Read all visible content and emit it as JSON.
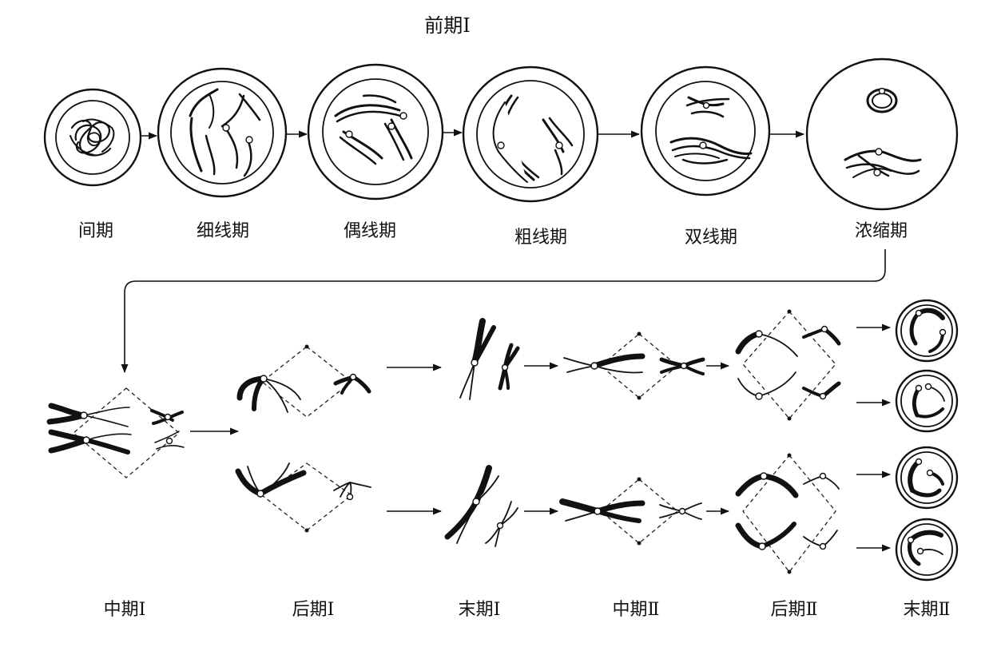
{
  "title": "前期Ⅰ",
  "prophase_stages": [
    {
      "label": "间期"
    },
    {
      "label": "细线期"
    },
    {
      "label": "偶线期"
    },
    {
      "label": "粗线期"
    },
    {
      "label": "双线期"
    },
    {
      "label": "浓缩期"
    }
  ],
  "division_stages": [
    {
      "label": "中期Ⅰ"
    },
    {
      "label": "后期Ⅰ"
    },
    {
      "label": "末期Ⅰ"
    },
    {
      "label": "中期Ⅱ"
    },
    {
      "label": "后期Ⅱ"
    },
    {
      "label": "末期Ⅱ"
    }
  ],
  "colors": {
    "line": "#111111",
    "background": "#ffffff"
  }
}
